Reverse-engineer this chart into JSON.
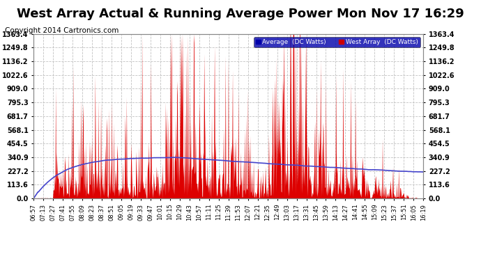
{
  "title": "West Array Actual & Running Average Power Mon Nov 17 16:29",
  "copyright": "Copyright 2014 Cartronics.com",
  "yticks": [
    0.0,
    113.6,
    227.2,
    340.9,
    454.5,
    568.1,
    681.7,
    795.3,
    909.0,
    1022.6,
    1136.2,
    1249.8,
    1363.4
  ],
  "ylim": [
    0,
    1363.4
  ],
  "legend_avg_label": "Average  (DC Watts)",
  "legend_west_label": "West Array  (DC Watts)",
  "bg_color": "#ffffff",
  "grid_color": "#bbbbbb",
  "title_fontsize": 13,
  "copyright_fontsize": 7.5,
  "xtick_labels": [
    "06:57",
    "07:13",
    "07:27",
    "07:41",
    "07:55",
    "08:09",
    "08:23",
    "08:37",
    "08:51",
    "09:05",
    "09:19",
    "09:33",
    "09:47",
    "10:01",
    "10:15",
    "10:29",
    "10:43",
    "10:57",
    "11:11",
    "11:25",
    "11:39",
    "11:53",
    "12:07",
    "12:21",
    "12:35",
    "12:49",
    "13:03",
    "13:17",
    "13:31",
    "13:45",
    "13:59",
    "14:13",
    "14:27",
    "14:41",
    "14:55",
    "15:09",
    "15:23",
    "15:37",
    "15:51",
    "16:05",
    "16:19"
  ],
  "red_fill_color": "#dd0000",
  "blue_line_color": "#4444cc"
}
